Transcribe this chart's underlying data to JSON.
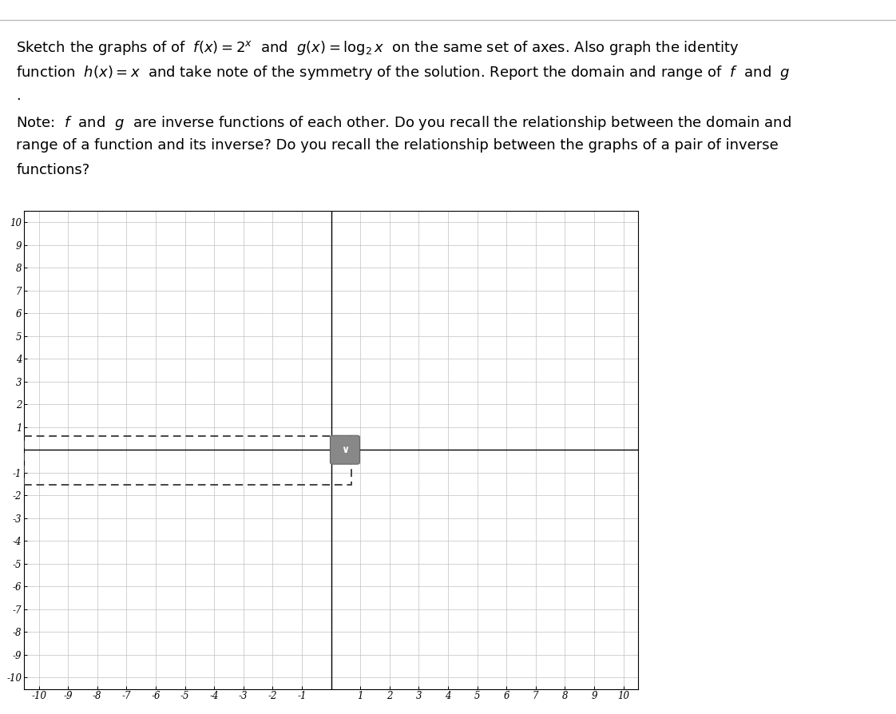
{
  "title_line1": "Sketch the graphs of of  $f(x) = 2^x$  and  $g(x) = \\log_2 x$  on the same set of axes. Also graph the identity",
  "title_line2": "function  $h(x) = x$  and take note of the symmetry of the solution. Report the domain and range of  $f$  and  $g$",
  "title_line3": ".",
  "note_prefix": "Note: ",
  "note_line1": " $f$  and  $g$  are inverse functions of each other. Do you recall the relationship between the domain and",
  "note_line2": "range of a function and its inverse? Do you recall the relationship between the graphs of a pair of inverse",
  "note_line3": "functions?",
  "xmin": -10,
  "xmax": 10,
  "ymin": -10,
  "ymax": 10,
  "grid_color": "#c0c0c0",
  "axis_color": "#000000",
  "background_color": "#ffffff",
  "text_color": "#000000",
  "tick_label_fontsize": 8.5,
  "text_fontsize": 13.0,
  "dashed_box_color": "#444444",
  "btn_color": "#888888"
}
